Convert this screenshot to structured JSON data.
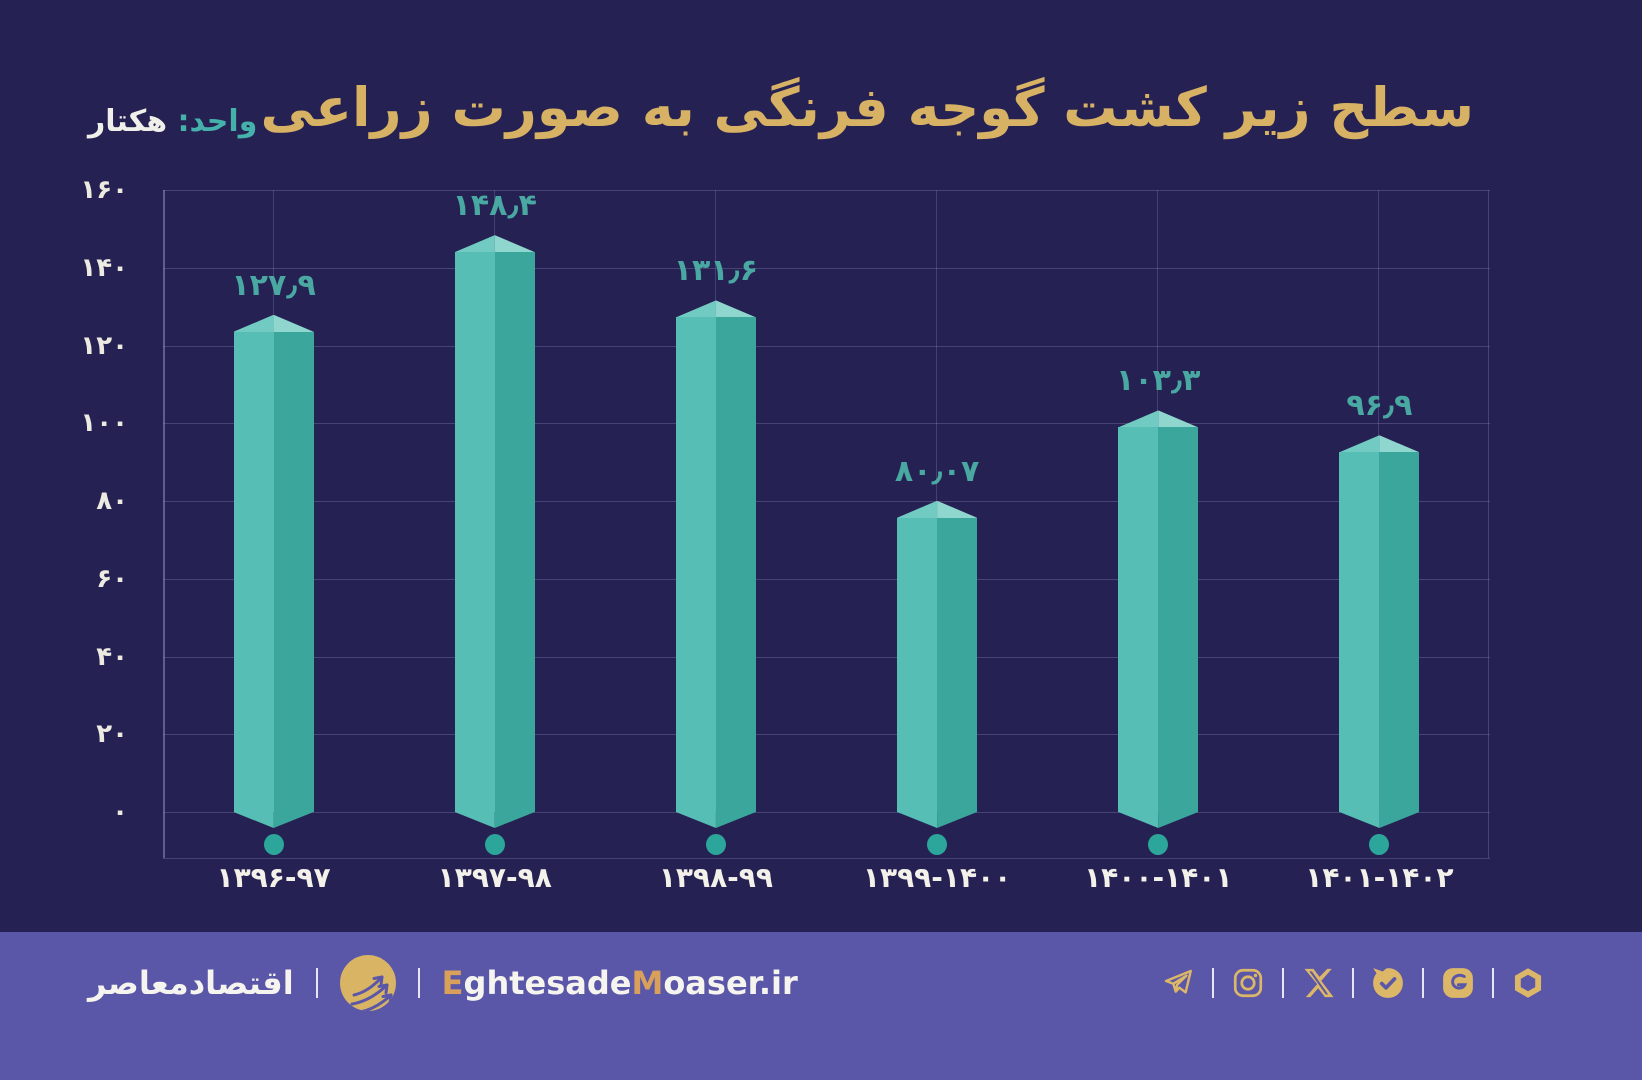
{
  "title": "سطح زیر کشت گوجه فرنگی به صورت زراعی",
  "unit_label": {
    "prefix": "واحد:",
    "value": "هکتار"
  },
  "chart_data": {
    "type": "bar",
    "title": "سطح زیر کشت گوجه فرنگی به صورت زراعی",
    "unit": "هکتار",
    "direction": "rtl",
    "categories": [
      "۱۳۹۶-۹۷",
      "۱۳۹۷-۹۸",
      "۱۳۹۸-۹۹",
      "۱۳۹۹-۱۴۰۰",
      "۱۴۰۰-۱۴۰۱",
      "۱۴۰۱-۱۴۰۲"
    ],
    "categories_western": [
      "1396-97",
      "1397-98",
      "1398-99",
      "1399-1400",
      "1400-1401",
      "1401-1402"
    ],
    "values": [
      127.9,
      148.4,
      131.6,
      80.07,
      103.3,
      96.9
    ],
    "value_labels": [
      "۱۲۷٫۹",
      "۱۴۸٫۴",
      "۱۳۱٫۶",
      "۸۰٫۰۷",
      "۱۰۳٫۳",
      "۹۶٫۹"
    ],
    "ylim": [
      0,
      160
    ],
    "y_ticks": [
      0,
      20,
      40,
      60,
      80,
      100,
      120,
      140,
      160
    ],
    "y_tick_labels": [
      "۰",
      "۲۰",
      "۴۰",
      "۶۰",
      "۸۰",
      "۱۰۰",
      "۱۲۰",
      "۱۴۰",
      "۱۶۰"
    ],
    "grid": true,
    "legend": false
  },
  "colors": {
    "background": "#262153",
    "title_gold": "#d8b264",
    "bar_light": "#57beb5",
    "bar_dark": "#3aa69c",
    "cap_light": "#8fd6cf",
    "cap_dark": "#72cbc3",
    "value_label_teal": "#49a8a2",
    "dot_teal": "#2ca69b",
    "axis_text": "#edeae2",
    "footer_band": "#5b57a8",
    "footer_gold": "#dcb768"
  },
  "footer": {
    "site_name_fa": "اقتصادمعاصر",
    "site_url": "EghtesadeMoaser.ir",
    "site_url_parts": [
      {
        "text": "E",
        "gold": true
      },
      {
        "text": "ghtesade",
        "gold": false
      },
      {
        "text": "M",
        "gold": true
      },
      {
        "text": "oaser",
        "gold": false
      },
      {
        "text": ".ir",
        "gold": false
      }
    ],
    "social_icons": [
      "telegram",
      "instagram",
      "x-twitter",
      "bale",
      "eitaa",
      "rubika"
    ]
  }
}
